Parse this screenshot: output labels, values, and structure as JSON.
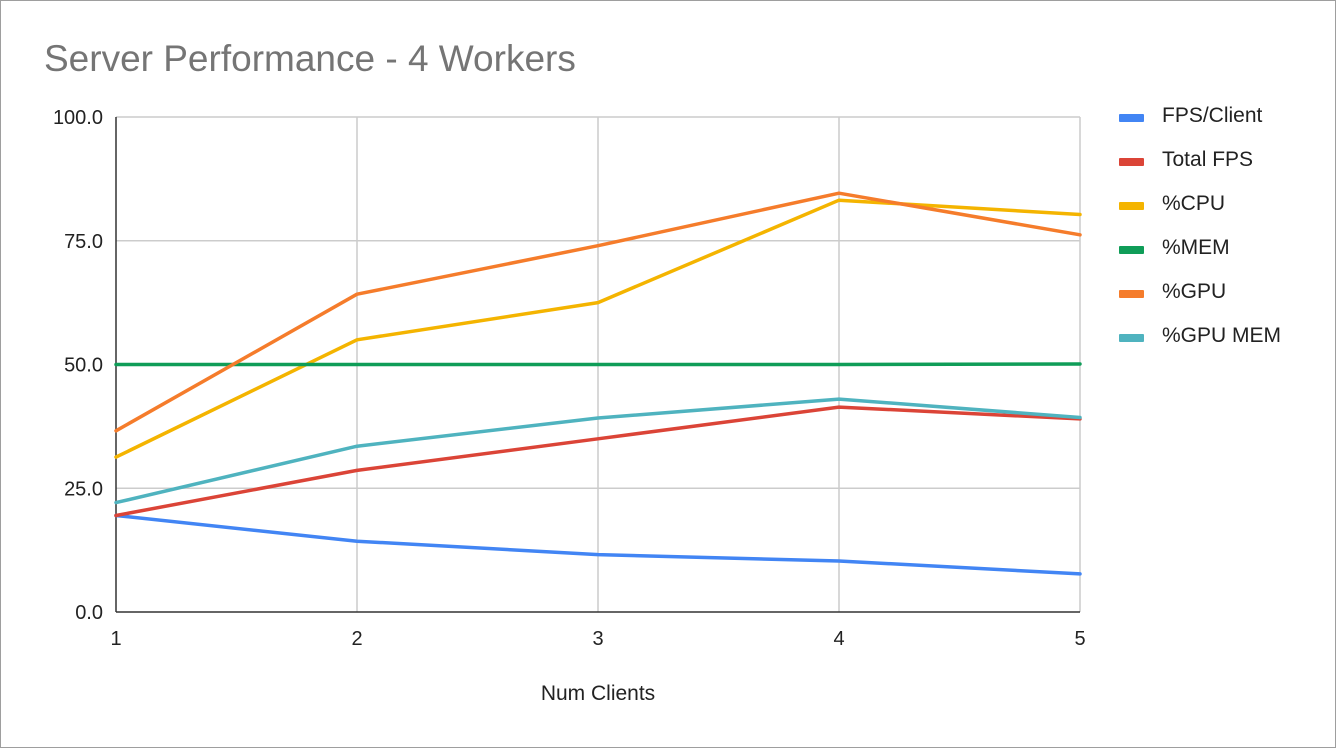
{
  "title": "Server Performance - 4 Workers",
  "chart_data": {
    "type": "line",
    "title": "Server Performance - 4 Workers",
    "xlabel": "Num Clients",
    "ylabel": "",
    "x": [
      1,
      2,
      3,
      4,
      5
    ],
    "x_tick_labels": [
      "1",
      "2",
      "3",
      "4",
      "5"
    ],
    "ylim": [
      0,
      100
    ],
    "y_ticks": [
      0,
      25,
      50,
      75,
      100
    ],
    "y_tick_labels": [
      "0.0",
      "25.0",
      "50.0",
      "75.0",
      "100.0"
    ],
    "grid": true,
    "legend_position": "right",
    "series": [
      {
        "name": "FPS/Client",
        "color": "#4285F4",
        "values": [
          19.5,
          14.3,
          11.6,
          10.3,
          7.7
        ]
      },
      {
        "name": "Total FPS",
        "color": "#DB4437",
        "values": [
          19.5,
          28.6,
          35.0,
          41.4,
          39.0
        ]
      },
      {
        "name": "%CPU",
        "color": "#F4B400",
        "values": [
          31.3,
          55.0,
          62.5,
          83.2,
          80.3
        ]
      },
      {
        "name": "%MEM",
        "color": "#0F9D58",
        "values": [
          50.0,
          50.0,
          50.0,
          50.0,
          50.1
        ]
      },
      {
        "name": "%GPU",
        "color": "#F57C2B",
        "values": [
          36.6,
          64.2,
          74.0,
          84.6,
          76.2
        ]
      },
      {
        "name": "%GPU MEM",
        "color": "#4FB3BF",
        "values": [
          22.1,
          33.5,
          39.2,
          43.0,
          39.3
        ]
      }
    ]
  }
}
